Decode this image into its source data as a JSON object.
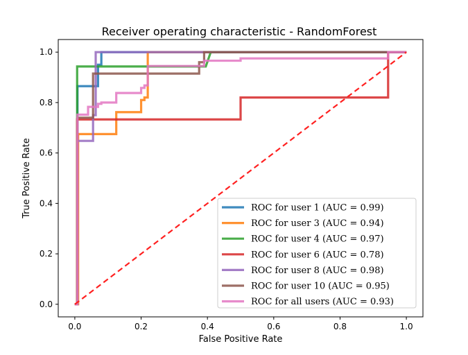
{
  "chart_data": {
    "type": "line",
    "title": "Receiver operating characteristic - RandomForest",
    "xlabel": "False Positive Rate",
    "ylabel": "True Positive Rate",
    "xlim": [
      -0.05,
      1.05
    ],
    "ylim": [
      -0.05,
      1.05
    ],
    "xticks": [
      0.0,
      0.2,
      0.4,
      0.6,
      0.8,
      1.0
    ],
    "xtick_labels": [
      "0.0",
      "0.2",
      "0.4",
      "0.6",
      "0.8",
      "1.0"
    ],
    "yticks": [
      0.0,
      0.2,
      0.4,
      0.6,
      0.8,
      1.0
    ],
    "ytick_labels": [
      "0.0",
      "0.2",
      "0.4",
      "0.6",
      "0.8",
      "1.0"
    ],
    "grid": false,
    "legend_placement": "lower-right",
    "series": [
      {
        "name": "ROC for user 1 (AUC = 0.99)",
        "color": "#1f77b4",
        "x": [
          0,
          0.008,
          0.008,
          0.07,
          0.07,
          0.08,
          0.08,
          1.0
        ],
        "y": [
          0,
          0,
          0.865,
          0.865,
          0.95,
          0.95,
          1.0,
          1.0
        ]
      },
      {
        "name": "ROC for user 3 (AUC = 0.94)",
        "color": "#ff7f0e",
        "x": [
          0,
          0.01,
          0.01,
          0.125,
          0.125,
          0.2,
          0.2,
          0.21,
          0.21,
          0.22,
          0.22,
          1.0
        ],
        "y": [
          0,
          0,
          0.675,
          0.675,
          0.762,
          0.762,
          0.81,
          0.81,
          0.82,
          0.82,
          1.0,
          1.0
        ]
      },
      {
        "name": "ROC for user 4 (AUC = 0.97)",
        "color": "#2ca02c",
        "x": [
          0,
          0.007,
          0.007,
          0.395,
          0.41,
          1.0
        ],
        "y": [
          0,
          0,
          0.943,
          0.943,
          1.0,
          1.0
        ]
      },
      {
        "name": "ROC for user 6 (AUC = 0.78)",
        "color": "#d62728",
        "x": [
          0,
          0.007,
          0.007,
          0.5,
          0.5,
          0.945,
          0.945,
          1.0
        ],
        "y": [
          0,
          0,
          0.733,
          0.733,
          0.82,
          0.82,
          1.0,
          1.0
        ]
      },
      {
        "name": "ROC for user 8 (AUC = 0.98)",
        "color": "#9467bd",
        "x": [
          0,
          0.008,
          0.008,
          0.055,
          0.055,
          0.063,
          0.063,
          1.0
        ],
        "y": [
          0,
          0,
          0.648,
          0.648,
          0.75,
          0.75,
          1.0,
          1.0
        ]
      },
      {
        "name": "ROC for user 10 (AUC = 0.95)",
        "color": "#8c564b",
        "x": [
          0,
          0.008,
          0.008,
          0.055,
          0.055,
          0.375,
          0.375,
          0.39,
          0.39,
          1.0
        ],
        "y": [
          0,
          0,
          0.74,
          0.74,
          0.915,
          0.915,
          0.96,
          0.96,
          1.0,
          1.0
        ]
      },
      {
        "name": "ROC for all users (AUC = 0.93)",
        "color": "#e377c2",
        "x": [
          0,
          0.008,
          0.008,
          0.04,
          0.04,
          0.07,
          0.07,
          0.08,
          0.08,
          0.125,
          0.125,
          0.2,
          0.2,
          0.21,
          0.21,
          0.22,
          0.22,
          0.39,
          0.39,
          0.5,
          0.5,
          0.945,
          0.945,
          1.0
        ],
        "y": [
          0,
          0,
          0.752,
          0.752,
          0.783,
          0.783,
          0.795,
          0.795,
          0.8,
          0.8,
          0.838,
          0.838,
          0.858,
          0.858,
          0.868,
          0.868,
          0.945,
          0.945,
          0.966,
          0.966,
          0.975,
          0.975,
          1.0,
          1.0
        ]
      }
    ],
    "reference_line": {
      "color": "#ff2020",
      "style": "dashed",
      "x": [
        0,
        1
      ],
      "y": [
        0,
        1
      ]
    }
  }
}
